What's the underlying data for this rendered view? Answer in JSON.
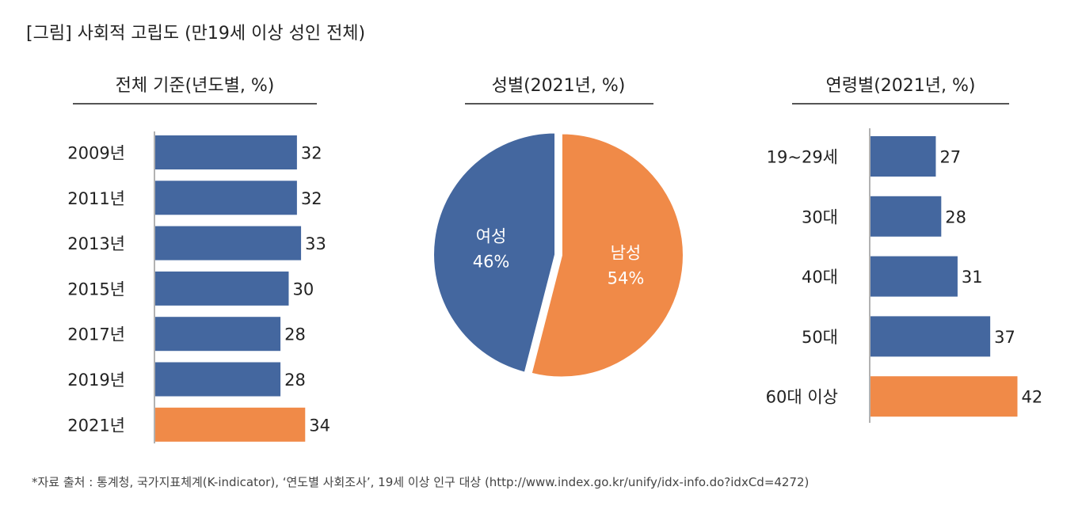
{
  "title": "[그림] 사회적 고립도 (만19세 이상 성인 전체)",
  "source": "*자료 출처 : 통계청, 국가지표체계(K-indicator), ‘연도별 사회조사’, 19세 이상 인구 대상 (http://www.index.go.kr/unify/idx-info.do?idxCd=4272)",
  "colors": {
    "blue": "#44679f",
    "orange": "#f08a48",
    "axis": "#999999",
    "rule": "#555555"
  },
  "chart_data": [
    {
      "type": "bar",
      "orientation": "horizontal",
      "title": "전체 기준(년도별, %)",
      "categories": [
        "2009년",
        "2011년",
        "2013년",
        "2015년",
        "2017년",
        "2019년",
        "2021년"
      ],
      "values": [
        32,
        32,
        33,
        30,
        28,
        28,
        34
      ],
      "highlight": [
        false,
        false,
        false,
        false,
        false,
        false,
        true
      ]
    },
    {
      "type": "pie",
      "title": "성별(2021년, %)",
      "slices": [
        {
          "name": "남성",
          "value": 54,
          "label": "54%",
          "color": "orange"
        },
        {
          "name": "여성",
          "value": 46,
          "label": "46%",
          "color": "blue"
        }
      ]
    },
    {
      "type": "bar",
      "orientation": "horizontal",
      "title": "연령별(2021년, %)",
      "categories": [
        "19~29세",
        "30대",
        "40대",
        "50대",
        "60대 이상"
      ],
      "values": [
        27,
        28,
        31,
        37,
        42
      ],
      "highlight": [
        false,
        false,
        false,
        false,
        true
      ]
    }
  ]
}
